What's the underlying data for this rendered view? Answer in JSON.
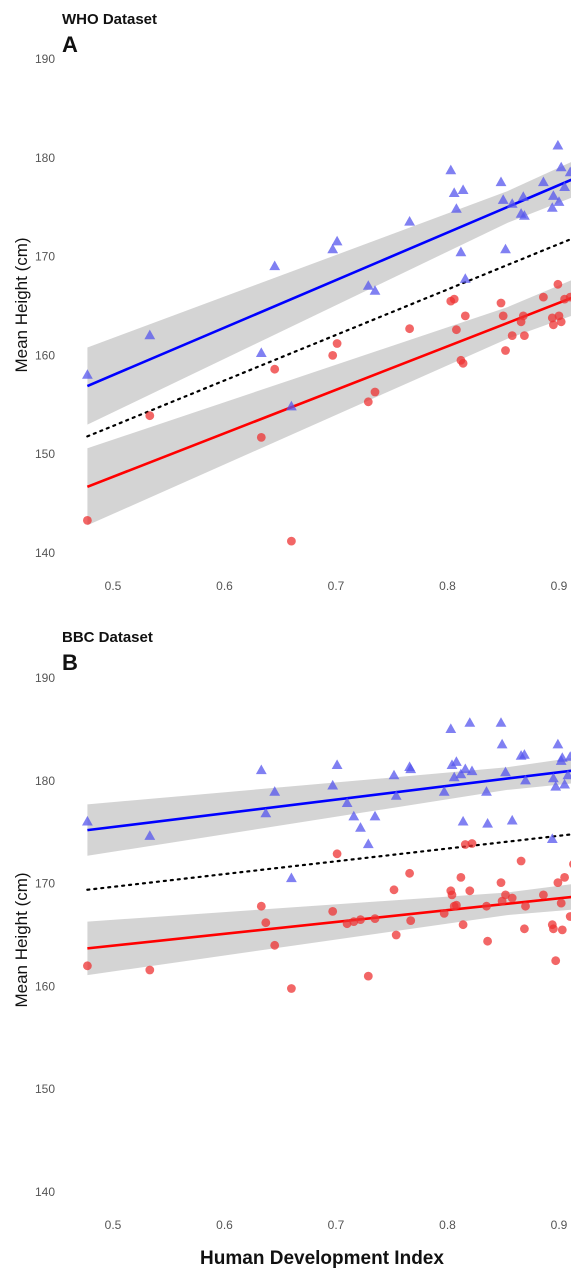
{
  "figure": {
    "xlabel": "Human Development Index",
    "colors": {
      "male": "#5555ee",
      "female": "#ee3333",
      "male_line": "#0000ff",
      "female_line": "#ff0000",
      "ribbon": "#cccccc",
      "overall_line": "#000000"
    }
  },
  "chart_data": [
    {
      "type": "scatter",
      "title": "WHO Dataset",
      "panel": "A",
      "xlabel": "",
      "ylabel": "Mean Height (cm)",
      "xlim": [
        0.45,
        0.92
      ],
      "ylim": [
        139,
        191
      ],
      "xticks": [
        0.5,
        0.6,
        0.7,
        0.8,
        0.9
      ],
      "yticks": [
        140,
        150,
        160,
        170,
        180,
        190
      ],
      "grid": false,
      "legend": "none",
      "series": [
        {
          "marker": "triangle",
          "points": [
            [
              0.477,
              158
            ],
            [
              0.533,
              162
            ],
            [
              0.633,
              160.2
            ],
            [
              0.645,
              169
            ],
            [
              0.66,
              154.8
            ],
            [
              0.697,
              170.7
            ],
            [
              0.701,
              171.5
            ],
            [
              0.729,
              167
            ],
            [
              0.735,
              166.5
            ],
            [
              0.766,
              173.5
            ],
            [
              0.803,
              178.7
            ],
            [
              0.806,
              176.4
            ],
            [
              0.808,
              174.8
            ],
            [
              0.812,
              170.4
            ],
            [
              0.814,
              176.7
            ],
            [
              0.816,
              167.7
            ],
            [
              0.848,
              177.5
            ],
            [
              0.85,
              175.7
            ],
            [
              0.852,
              170.7
            ],
            [
              0.858,
              175.3
            ],
            [
              0.866,
              174.3
            ],
            [
              0.868,
              176
            ],
            [
              0.869,
              174.1
            ],
            [
              0.886,
              177.5
            ],
            [
              0.894,
              174.9
            ],
            [
              0.895,
              176.1
            ],
            [
              0.899,
              181.2
            ],
            [
              0.9,
              175.5
            ],
            [
              0.902,
              179
            ],
            [
              0.905,
              177
            ],
            [
              0.91,
              178.5
            ]
          ]
        },
        {
          "marker": "circle",
          "points": [
            [
              0.477,
              143.3
            ],
            [
              0.533,
              153.9
            ],
            [
              0.633,
              151.7
            ],
            [
              0.645,
              158.6
            ],
            [
              0.66,
              141.2
            ],
            [
              0.697,
              160
            ],
            [
              0.701,
              161.2
            ],
            [
              0.729,
              155.3
            ],
            [
              0.735,
              156.3
            ],
            [
              0.766,
              162.7
            ],
            [
              0.803,
              165.5
            ],
            [
              0.806,
              165.7
            ],
            [
              0.808,
              162.6
            ],
            [
              0.812,
              159.5
            ],
            [
              0.814,
              159.2
            ],
            [
              0.816,
              164
            ],
            [
              0.848,
              165.3
            ],
            [
              0.85,
              164
            ],
            [
              0.852,
              160.5
            ],
            [
              0.858,
              162
            ],
            [
              0.866,
              163.4
            ],
            [
              0.868,
              164
            ],
            [
              0.869,
              162
            ],
            [
              0.886,
              165.9
            ],
            [
              0.894,
              163.8
            ],
            [
              0.895,
              163.1
            ],
            [
              0.899,
              167.2
            ],
            [
              0.9,
              164
            ],
            [
              0.902,
              163.4
            ],
            [
              0.905,
              165.7
            ],
            [
              0.91,
              165.9
            ]
          ]
        }
      ],
      "fits": {
        "male": {
          "x": [
            0.477,
            0.92
          ],
          "y": [
            156.9,
            178.2
          ],
          "ci_half_width_ends": [
            3.9,
            1.6
          ]
        },
        "female": {
          "x": [
            0.477,
            0.92
          ],
          "y": [
            146.7,
            166.2
          ],
          "ci_half_width_ends": [
            3.9,
            1.6
          ]
        },
        "overall": {
          "x": [
            0.477,
            0.92
          ],
          "y": [
            151.8,
            172.2
          ]
        }
      }
    },
    {
      "type": "scatter",
      "title": "BBC Dataset",
      "panel": "B",
      "xlabel": "Human Development Index",
      "ylabel": "Mean Height (cm)",
      "xlim": [
        0.45,
        0.92
      ],
      "ylim": [
        139,
        191
      ],
      "xticks": [
        0.5,
        0.6,
        0.7,
        0.8,
        0.9
      ],
      "yticks": [
        140,
        150,
        160,
        170,
        180,
        190
      ],
      "grid": false,
      "legend": "none",
      "series": [
        {
          "marker": "triangle",
          "points": [
            [
              0.477,
              176
            ],
            [
              0.533,
              174.6
            ],
            [
              0.633,
              181
            ],
            [
              0.637,
              176.8
            ],
            [
              0.645,
              178.9
            ],
            [
              0.66,
              170.5
            ],
            [
              0.697,
              179.5
            ],
            [
              0.701,
              181.5
            ],
            [
              0.71,
              177.8
            ],
            [
              0.716,
              176.5
            ],
            [
              0.722,
              175.4
            ],
            [
              0.729,
              173.8
            ],
            [
              0.735,
              176.5
            ],
            [
              0.752,
              180.5
            ],
            [
              0.754,
              178.5
            ],
            [
              0.766,
              181.3
            ],
            [
              0.767,
              181.1
            ],
            [
              0.797,
              178.9
            ],
            [
              0.803,
              185
            ],
            [
              0.804,
              181.5
            ],
            [
              0.806,
              180.3
            ],
            [
              0.808,
              181.8
            ],
            [
              0.812,
              180.6
            ],
            [
              0.814,
              176
            ],
            [
              0.816,
              181.1
            ],
            [
              0.82,
              185.6
            ],
            [
              0.822,
              180.9
            ],
            [
              0.835,
              178.9
            ],
            [
              0.836,
              175.8
            ],
            [
              0.848,
              185.6
            ],
            [
              0.849,
              183.5
            ],
            [
              0.852,
              180.8
            ],
            [
              0.858,
              176.1
            ],
            [
              0.866,
              182.4
            ],
            [
              0.869,
              182.5
            ],
            [
              0.87,
              180
            ],
            [
              0.894,
              174.3
            ],
            [
              0.895,
              180.2
            ],
            [
              0.897,
              179.4
            ],
            [
              0.899,
              183.5
            ],
            [
              0.902,
              181.9
            ],
            [
              0.903,
              182.2
            ],
            [
              0.905,
              179.6
            ],
            [
              0.908,
              180.5
            ],
            [
              0.91,
              182.3
            ]
          ]
        },
        {
          "marker": "circle",
          "points": [
            [
              0.477,
              162
            ],
            [
              0.533,
              161.6
            ],
            [
              0.633,
              167.8
            ],
            [
              0.637,
              166.2
            ],
            [
              0.645,
              164
            ],
            [
              0.66,
              159.8
            ],
            [
              0.697,
              167.3
            ],
            [
              0.701,
              172.9
            ],
            [
              0.71,
              166.1
            ],
            [
              0.716,
              166.3
            ],
            [
              0.722,
              166.5
            ],
            [
              0.729,
              161
            ],
            [
              0.735,
              166.6
            ],
            [
              0.752,
              169.4
            ],
            [
              0.754,
              165
            ],
            [
              0.766,
              171
            ],
            [
              0.767,
              166.4
            ],
            [
              0.797,
              167.1
            ],
            [
              0.803,
              169.3
            ],
            [
              0.804,
              168.9
            ],
            [
              0.806,
              167.8
            ],
            [
              0.808,
              167.9
            ],
            [
              0.812,
              170.6
            ],
            [
              0.814,
              166
            ],
            [
              0.816,
              173.8
            ],
            [
              0.82,
              169.3
            ],
            [
              0.822,
              173.9
            ],
            [
              0.835,
              167.8
            ],
            [
              0.836,
              164.4
            ],
            [
              0.848,
              170.1
            ],
            [
              0.849,
              168.3
            ],
            [
              0.852,
              168.9
            ],
            [
              0.858,
              168.6
            ],
            [
              0.866,
              172.2
            ],
            [
              0.869,
              165.6
            ],
            [
              0.87,
              167.8
            ],
            [
              0.886,
              168.9
            ],
            [
              0.894,
              166
            ],
            [
              0.895,
              165.6
            ],
            [
              0.897,
              162.5
            ],
            [
              0.899,
              170.1
            ],
            [
              0.902,
              168.1
            ],
            [
              0.903,
              165.5
            ],
            [
              0.905,
              170.6
            ],
            [
              0.91,
              166.8
            ],
            [
              0.913,
              171.9
            ]
          ]
        }
      ],
      "fits": {
        "male": {
          "x": [
            0.477,
            0.92
          ],
          "y": [
            175.2,
            181.1
          ],
          "ci_half_width_ends": [
            2.5,
            1.1
          ]
        },
        "female": {
          "x": [
            0.477,
            0.92
          ],
          "y": [
            163.7,
            168.8
          ],
          "ci_half_width_ends": [
            2.6,
            1.1
          ]
        },
        "overall": {
          "x": [
            0.477,
            0.92
          ],
          "y": [
            169.4,
            174.9
          ]
        }
      }
    }
  ]
}
